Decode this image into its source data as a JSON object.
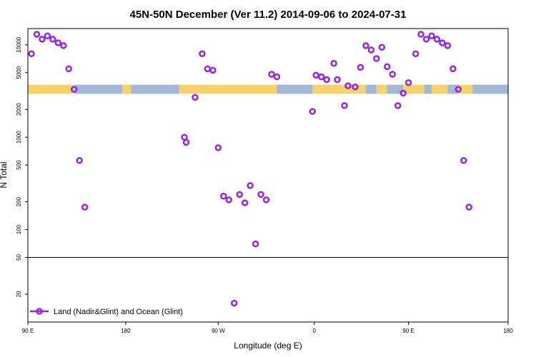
{
  "chart_data": {
    "type": "scatter",
    "title": "45N-50N December (Ver 11.2)   2014-09-06 to 2024-07-31",
    "xlabel": "Longitude (deg E)",
    "ylabel": "N Total",
    "xlim": [
      -90,
      180
    ],
    "ylim_log": [
      10,
      15000
    ],
    "y_scale": "log",
    "x_ticks": [
      {
        "value": -90,
        "label": "90 E"
      },
      {
        "value": -35,
        "label": "180"
      },
      {
        "value": 17,
        "label": "90 W"
      },
      {
        "value": 71,
        "label": "0"
      },
      {
        "value": 124,
        "label": "90 E"
      },
      {
        "value": 180,
        "label": "180"
      }
    ],
    "y_ticks": [
      {
        "value": 20,
        "label": "20"
      },
      {
        "value": 50,
        "label": "50"
      },
      {
        "value": 100,
        "label": "100"
      },
      {
        "value": 200,
        "label": "200"
      },
      {
        "value": 500,
        "label": "500"
      },
      {
        "value": 1000,
        "label": "1000"
      },
      {
        "value": 2000,
        "label": "2000"
      },
      {
        "value": 5000,
        "label": "5000"
      },
      {
        "value": 10000,
        "label": "10000"
      }
    ],
    "reference_line": 50,
    "surface_band": {
      "y_low": 2950,
      "y_high": 3700,
      "colors": [
        "#f5d36c",
        "#a3b8d8"
      ]
    },
    "marker_color": "#9a22e6",
    "legend_location": "bottom-left",
    "series": [
      {
        "name": "Land (Nadir&Glint) and Ocean (Glint)",
        "x": [
          -88,
          -85,
          -82,
          -79,
          -76,
          -73,
          -70,
          -67,
          -64,
          -61,
          -58,
          -2,
          -1,
          4,
          8,
          11,
          14,
          17,
          20,
          23,
          26,
          29,
          32,
          35,
          38,
          41,
          44,
          47,
          50,
          70,
          72,
          75,
          78,
          82,
          84,
          88,
          90,
          94,
          97,
          100,
          103,
          106,
          109,
          112,
          115,
          118,
          121,
          124,
          128,
          131,
          134,
          137,
          140,
          143,
          146,
          149,
          152,
          155,
          158
        ],
        "y": [
          8000,
          13000,
          11500,
          12500,
          11500,
          10500,
          9800,
          5500,
          3300,
          560,
          175,
          1000,
          880,
          2700,
          8000,
          5500,
          5300,
          770,
          230,
          210,
          16,
          240,
          195,
          300,
          70,
          240,
          210,
          4800,
          4500,
          1900,
          4700,
          4500,
          4200,
          6300,
          4200,
          2200,
          3600,
          3500,
          5700,
          9800,
          8800,
          7100,
          9400,
          5800,
          4800,
          2200,
          3000,
          3900,
          8000,
          13000,
          11500,
          12500,
          11500,
          10500,
          9800,
          5500,
          3300,
          560,
          175
        ]
      }
    ]
  }
}
